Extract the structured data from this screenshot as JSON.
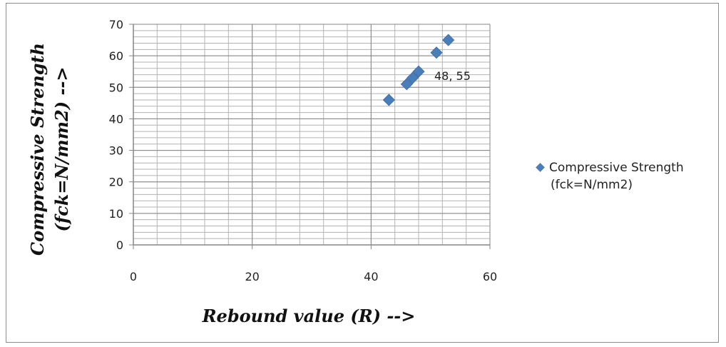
{
  "chart_data": {
    "type": "scatter",
    "xlabel": "Rebound value (R)  -->",
    "ylabel_lines": [
      "Compressive Strength",
      "(fck=N/mm2)  -->"
    ],
    "xlim": [
      0,
      60
    ],
    "ylim": [
      0,
      70
    ],
    "x_ticks": [
      0,
      20,
      40,
      60
    ],
    "y_ticks": [
      0,
      10,
      20,
      30,
      40,
      50,
      60,
      70
    ],
    "x_tick_labels": [
      "0",
      "20",
      "40",
      "60"
    ],
    "y_tick_labels": [
      "0",
      "10",
      "20",
      "30",
      "40",
      "50",
      "60",
      "70"
    ],
    "grid": true,
    "legend_position": "right",
    "series": [
      {
        "name_lines": [
          "Compressive Strength",
          "(fck=N/mm2)"
        ],
        "color": "#4a7ebb",
        "marker": "diamond",
        "x": [
          43,
          46,
          47,
          48,
          51,
          53
        ],
        "y": [
          46,
          51,
          53,
          55,
          61,
          65
        ]
      }
    ],
    "annotations": [
      {
        "text": "48, 55",
        "x": 48,
        "y": 55
      }
    ]
  }
}
